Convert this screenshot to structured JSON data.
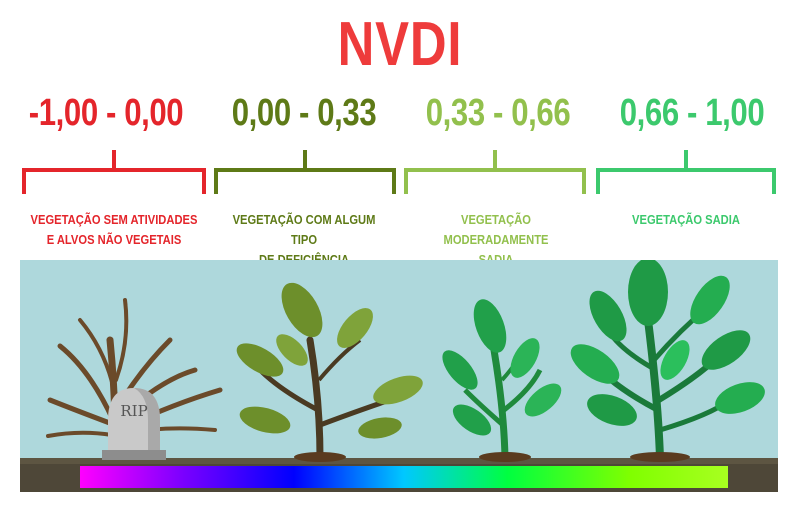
{
  "title": "NVDI",
  "colors": {
    "title": "#ee3b3b",
    "class1": "#e4252b",
    "class2": "#5e7a17",
    "class3": "#92c04d",
    "class4": "#3cc96d",
    "sky": "#aed8dc",
    "ground": "#4e4738"
  },
  "classes": [
    {
      "range": "-1,00 - 0,00",
      "desc_line1": "VEGETAÇÃO SEM ATIVIDADES",
      "desc_line2": "E ALVOS NÃO VEGETAIS"
    },
    {
      "range": "0,00 - 0,33",
      "desc_line1": "VEGETAÇÃO COM ALGUM TIPO",
      "desc_line2": "DE DEFICIÊNCIA"
    },
    {
      "range": "0,33 - 0,66",
      "desc_line1": "VEGETAÇÃO MODERADAMENTE",
      "desc_line2": "SADIA"
    },
    {
      "range": "0,66 - 1,00",
      "desc_line1": "VEGETAÇÃO SADIA",
      "desc_line2": ""
    }
  ],
  "tombstone_text": "RIP"
}
